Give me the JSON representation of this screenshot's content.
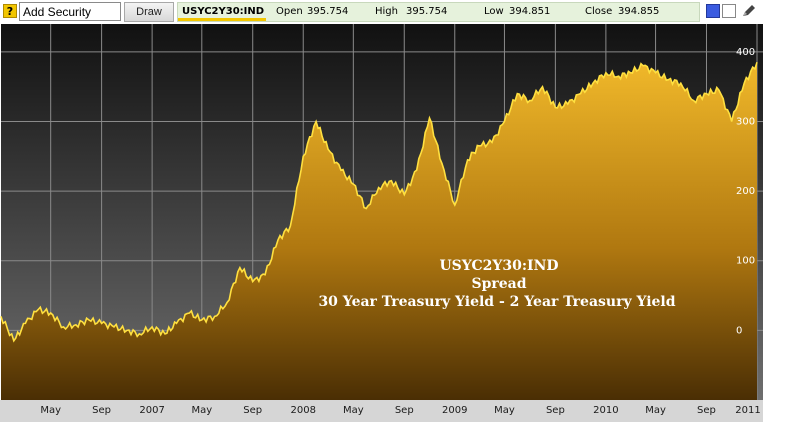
{
  "toolbar": {
    "help_icon": "?",
    "search_value": "Add Security",
    "draw_label": "Draw",
    "symbol": "USYC2Y30:IND",
    "open_label": "Open",
    "open_value": "395.754",
    "high_label": "High",
    "high_value": "395.754",
    "low_label": "Low",
    "low_value": "394.851",
    "close_label": "Close",
    "close_value": "394.855",
    "colors": {
      "quote_bg": "#e6f2dc",
      "accent": "#f2c600"
    }
  },
  "chart_data": {
    "type": "area",
    "x_ticks": [
      "May",
      "Sep",
      "2007",
      "May",
      "Sep",
      "2008",
      "May",
      "Sep",
      "2009",
      "May",
      "Sep",
      "2010",
      "May",
      "Sep",
      "2011"
    ],
    "y_ticks": [
      "0",
      "100",
      "200",
      "300",
      "400"
    ],
    "ylim": [
      -100,
      440
    ],
    "grid": true,
    "annotation": [
      "USYC2Y30:IND",
      "Spread",
      "30 Year Treasury Yield - 2 Year Treasury Yield"
    ],
    "series": [
      {
        "x": [
          "2006-01",
          "2006-02",
          "2006-03",
          "2006-04",
          "2006-05",
          "2006-06",
          "2006-07",
          "2006-08",
          "2006-09",
          "2006-10",
          "2006-11",
          "2006-12",
          "2007-01",
          "2007-02",
          "2007-03",
          "2007-04",
          "2007-05",
          "2007-06",
          "2007-07",
          "2007-08",
          "2007-09",
          "2007-10",
          "2007-11",
          "2007-12",
          "2008-01",
          "2008-02",
          "2008-03",
          "2008-04",
          "2008-05",
          "2008-06",
          "2008-07",
          "2008-08",
          "2008-09",
          "2008-10",
          "2008-11",
          "2008-12",
          "2009-01",
          "2009-02",
          "2009-03",
          "2009-04",
          "2009-05",
          "2009-06",
          "2009-07",
          "2009-08",
          "2009-09",
          "2009-10",
          "2009-11",
          "2009-12",
          "2010-01",
          "2010-02",
          "2010-03",
          "2010-04",
          "2010-05",
          "2010-06",
          "2010-07",
          "2010-08",
          "2010-09",
          "2010-10",
          "2010-11",
          "2010-12",
          "2011-01"
        ],
        "values": [
          20,
          -15,
          10,
          30,
          25,
          5,
          8,
          15,
          10,
          5,
          0,
          -5,
          5,
          -5,
          10,
          25,
          15,
          20,
          40,
          90,
          70,
          80,
          130,
          150,
          250,
          300,
          260,
          230,
          210,
          175,
          205,
          215,
          195,
          230,
          305,
          240,
          180,
          245,
          265,
          270,
          300,
          340,
          330,
          350,
          320,
          325,
          340,
          355,
          370,
          365,
          370,
          380,
          370,
          360,
          355,
          330,
          340,
          345,
          300,
          355,
          385
        ]
      }
    ]
  }
}
